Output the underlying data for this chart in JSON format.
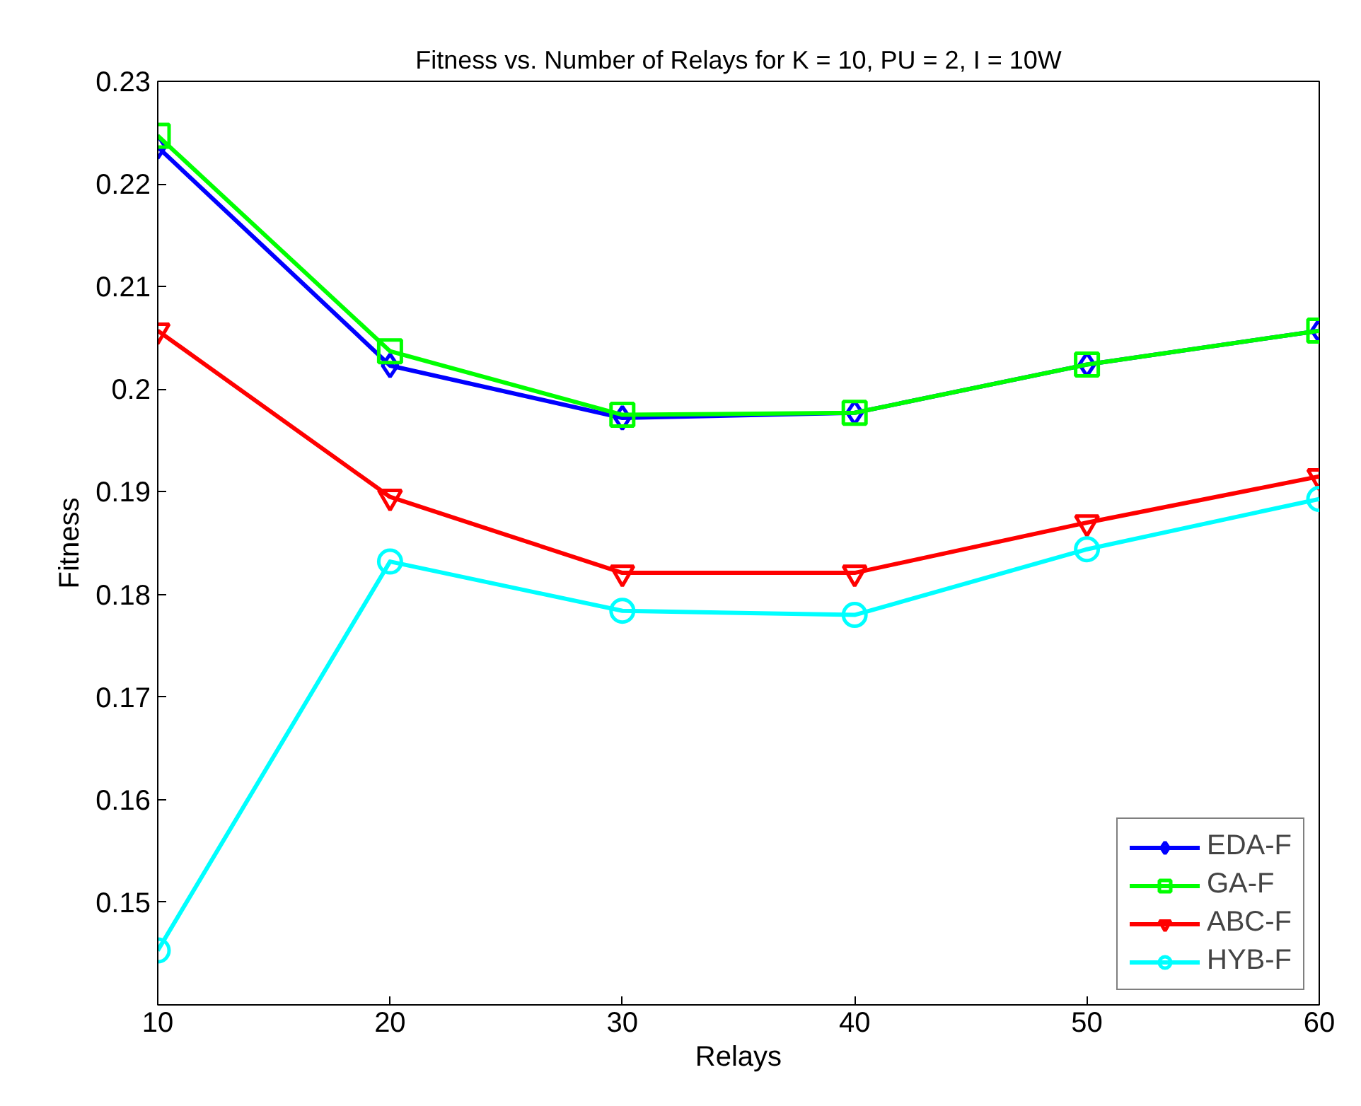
{
  "chart_data": {
    "type": "line",
    "title": "Fitness vs. Number of Relays for K = 10, PU = 2, I = 10W",
    "xlabel": "Relays",
    "ylabel": "Fitness",
    "x": [
      10,
      20,
      30,
      40,
      50,
      60
    ],
    "series": [
      {
        "name": "EDA-F",
        "color": "#0000ff",
        "marker": "diamond",
        "values": [
          0.2236,
          0.2023,
          0.1972,
          0.1977,
          0.2024,
          0.2057
        ]
      },
      {
        "name": "GA-F",
        "color": "#00ff00",
        "marker": "square",
        "values": [
          0.2247,
          0.2037,
          0.1975,
          0.1977,
          0.2024,
          0.2057
        ]
      },
      {
        "name": "ABC-F",
        "color": "#ff0000",
        "marker": "triangle",
        "values": [
          0.2057,
          0.1895,
          0.1821,
          0.1821,
          0.187,
          0.1915
        ]
      },
      {
        "name": "HYB-F",
        "color": "#00ffff",
        "marker": "circle",
        "values": [
          0.1453,
          0.1832,
          0.1784,
          0.178,
          0.1844,
          0.1893
        ]
      }
    ],
    "xlim": [
      10,
      60
    ],
    "xticks": [
      10,
      20,
      30,
      40,
      50,
      60
    ],
    "ylim": [
      0.14,
      0.23
    ],
    "yticks": [
      {
        "value": 0.14,
        "label": null
      },
      0.15,
      0.16,
      0.17,
      0.18,
      0.19,
      0.2,
      0.21,
      0.22,
      0.23
    ],
    "grid": false,
    "legend": "bottom right",
    "line_style": "solid"
  }
}
